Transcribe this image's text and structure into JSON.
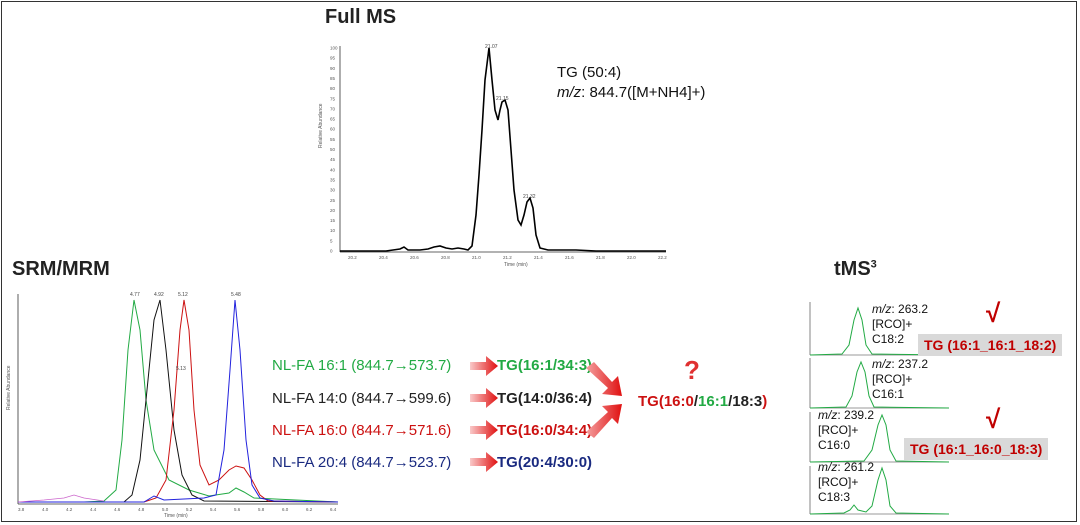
{
  "full_ms": {
    "title": "Full MS",
    "tg_label": "TG (50:4)",
    "mz_prefix": "m/z",
    "mz_value": ": 844.7([M+NH4]+)",
    "peak_labels": [
      "21.07",
      "21.15",
      "21.32"
    ],
    "x_ticks": [
      "20.2",
      "20.4",
      "20.6",
      "20.8",
      "21.0",
      "21.2",
      "21.4",
      "21.6",
      "21.8",
      "22.0",
      "22.2"
    ],
    "y_ticks": [
      "0",
      "5",
      "10",
      "15",
      "20",
      "25",
      "30",
      "35",
      "40",
      "45",
      "50",
      "55",
      "60",
      "65",
      "70",
      "75",
      "80",
      "85",
      "90",
      "95",
      "100"
    ],
    "xlabel": "Time (min)",
    "ylabel": "Relative Abundance"
  },
  "srm": {
    "title": "SRM/MRM",
    "peak_labels": [
      "4.77",
      "4.92",
      "5.12",
      "5.48",
      "5.13"
    ],
    "x_ticks": [
      "3.8",
      "4.0",
      "4.2",
      "4.4",
      "4.6",
      "4.8",
      "5.0",
      "5.2",
      "5.4",
      "5.6",
      "5.8",
      "6.0",
      "6.2",
      "6.4"
    ],
    "xlabel": "Time (min)",
    "ylabel": "Relative Abundance"
  },
  "transitions": [
    {
      "nl": "NL-FA 16:1 (844.7→573.7)",
      "tg": "TG(16:1/34:3)",
      "color": "#22aa44"
    },
    {
      "nl": "NL-FA 14:0 (844.7→599.6)",
      "tg": "TG(14:0/36:4)",
      "color": "#222222"
    },
    {
      "nl": "NL-FA 16:0 (844.7→571.6)",
      "tg": "TG(16:0/34:4)",
      "color": "#cc1111"
    },
    {
      "nl": "NL-FA 20:4 (844.7→523.7)",
      "tg": "TG(20:4/30:0)",
      "color": "#1a2a80"
    }
  ],
  "question": "?",
  "combined": {
    "prefix": "TG(",
    "a": "16:0",
    "s1": "/",
    "b": "16:1",
    "s2": "/",
    "c": "18:3",
    "suffix": ")"
  },
  "tms3": {
    "title": "tMS",
    "sup": "3",
    "panels": [
      {
        "mz": "263.2",
        "ion": "[RCO]+",
        "fa": "C18:2"
      },
      {
        "mz": "237.2",
        "ion": "[RCO]+",
        "fa": "C16:1"
      },
      {
        "mz": "239.2",
        "ion": "[RCO]+",
        "fa": "C16:0"
      },
      {
        "mz": "261.2",
        "ion": "[RCO]+",
        "fa": "C18:3"
      }
    ],
    "results": [
      "TG (16:1_16:1_18:2)",
      "TG (16:1_16:0_18:3)"
    ],
    "check": "√"
  },
  "colors": {
    "red": "#cc1111",
    "green": "#22aa44",
    "navy": "#1a2a80",
    "blue": "#2222dd"
  }
}
